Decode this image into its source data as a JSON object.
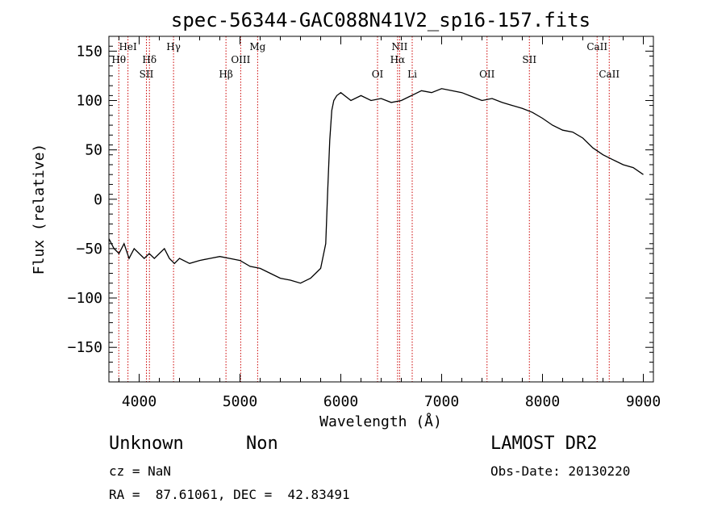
{
  "chart_data": {
    "type": "line",
    "title": "spec-56344-GAC088N41V2_sp16-157.fits",
    "xlabel": "Wavelength (Å)",
    "ylabel": "Flux (relative)",
    "xlim": [
      3700,
      9100
    ],
    "ylim": [
      -185,
      165
    ],
    "xticks": [
      4000,
      5000,
      6000,
      7000,
      8000,
      9000
    ],
    "yticks": [
      -150,
      -100,
      -50,
      0,
      50,
      100,
      150
    ],
    "ytick_labels": [
      "−150",
      "−100",
      "−50",
      "0",
      "50",
      "100",
      "150"
    ],
    "grid": false,
    "line_color": "#000000",
    "marker_color": "#cc0000",
    "series": [
      {
        "x": [
          3700,
          3750,
          3800,
          3850,
          3900,
          3950,
          4000,
          4050,
          4100,
          4150,
          4200,
          4250,
          4300,
          4350,
          4400,
          4500,
          4600,
          4700,
          4800,
          4900,
          5000,
          5100,
          5200,
          5300,
          5400,
          5500,
          5600,
          5700,
          5750,
          5800,
          5850,
          5870,
          5890,
          5910,
          5930,
          5960,
          6000,
          6100,
          6200,
          6300,
          6400,
          6500,
          6600,
          6700,
          6800,
          6900,
          7000,
          7100,
          7200,
          7300,
          7400,
          7500,
          7600,
          7700,
          7800,
          7900,
          8000,
          8100,
          8200,
          8300,
          8400,
          8500,
          8600,
          8700,
          8800,
          8900,
          9000
        ],
        "y": [
          -40,
          -50,
          -55,
          -45,
          -60,
          -50,
          -55,
          -60,
          -55,
          -60,
          -55,
          -50,
          -60,
          -65,
          -60,
          -65,
          -62,
          -60,
          -58,
          -60,
          -62,
          -68,
          -70,
          -75,
          -80,
          -82,
          -85,
          -80,
          -75,
          -70,
          -45,
          10,
          60,
          90,
          100,
          105,
          108,
          100,
          105,
          100,
          102,
          98,
          100,
          105,
          110,
          108,
          112,
          110,
          108,
          104,
          100,
          102,
          98,
          95,
          92,
          88,
          82,
          75,
          70,
          68,
          62,
          52,
          45,
          40,
          35,
          32,
          25
        ]
      }
    ],
    "line_markers": [
      {
        "label": "Hθ",
        "x": 3798,
        "row": 2
      },
      {
        "label": "HeI",
        "x": 3889,
        "row": 1
      },
      {
        "label": "Hδ",
        "x": 4102,
        "row": 2
      },
      {
        "label": "SII",
        "x": 4072,
        "row": 3
      },
      {
        "label": "Hγ",
        "x": 4341,
        "row": 1
      },
      {
        "label": "Hβ",
        "x": 4861,
        "row": 3
      },
      {
        "label": "OIII",
        "x": 5007,
        "row": 2
      },
      {
        "label": "Mg",
        "x": 5175,
        "row": 1
      },
      {
        "label": "OI",
        "x": 6364,
        "row": 3
      },
      {
        "label": "NII",
        "x": 6583,
        "row": 1
      },
      {
        "label": "Hα",
        "x": 6563,
        "row": 2
      },
      {
        "label": "Li",
        "x": 6708,
        "row": 3
      },
      {
        "label": "OII",
        "x": 7450,
        "row": 3
      },
      {
        "label": "SII",
        "x": 7870,
        "row": 2
      },
      {
        "label": "CaII",
        "x": 8542,
        "row": 1
      },
      {
        "label": "CaII",
        "x": 8662,
        "row": 3
      }
    ]
  },
  "info": {
    "class": "Unknown",
    "subclass": "Non",
    "survey": "LAMOST DR2",
    "cz": "cz = NaN",
    "obs_date": "Obs-Date: 20130220",
    "coords": "RA =  87.61061, DEC =  42.83491"
  }
}
